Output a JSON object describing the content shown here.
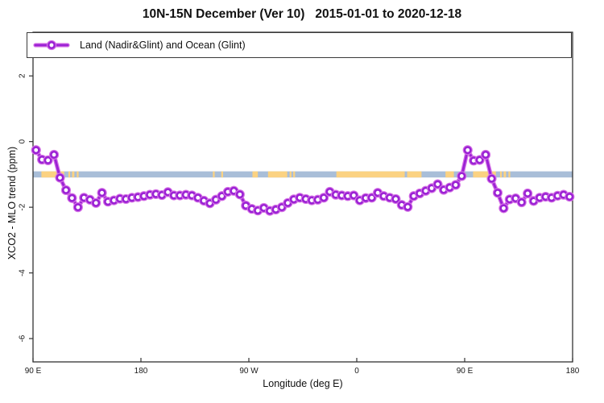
{
  "chart_data": {
    "type": "line",
    "title": "10N-15N December (Ver 10)   2015-01-01 to 2020-12-18",
    "xlabel": "Longitude (deg E)",
    "ylabel": "XCO2 - MLO trend (ppm)",
    "xlim": [
      90,
      540
    ],
    "ylim": [
      -6.71,
      3.33
    ],
    "grid": false,
    "x_ticks": {
      "values": [
        90,
        180,
        270,
        360,
        450,
        540
      ],
      "labels": [
        "90 E",
        "180",
        "90 W",
        "0",
        "90 E",
        "180"
      ]
    },
    "y_ticks": {
      "values": [
        2,
        0,
        -2,
        -4,
        -6
      ],
      "labels": [
        "2",
        "0",
        "-2",
        "-4",
        "-6"
      ]
    },
    "legend": {
      "position": "top",
      "entries": [
        {
          "label": "Land (Nadir&Glint) and Ocean (Glint)",
          "marker": "open-circle",
          "color": "#9b22d4"
        }
      ]
    },
    "colors": {
      "line": "#9b22d4",
      "line_halo": "#d673e6",
      "marker_fill": "#ffffff",
      "axis": "#333333",
      "text": "#1a1a1a"
    },
    "land_ocean_band": {
      "description": "map strip of land vs ocean along latitude band",
      "y_center": -1,
      "ocean_color": "#a9bed8",
      "land_color": "#fbd282",
      "land_segments_deg_e": [
        [
          97,
          116
        ],
        [
          119.5,
          121
        ],
        [
          122.5,
          124.5
        ],
        [
          126.5,
          128
        ],
        [
          240,
          241.5
        ],
        [
          247,
          248.5
        ],
        [
          273,
          277.5
        ],
        [
          286,
          302
        ],
        [
          304,
          305.5
        ],
        [
          307,
          308.5
        ],
        [
          343,
          400
        ],
        [
          402,
          414
        ],
        [
          434,
          441
        ],
        [
          457,
          476
        ],
        [
          479.5,
          481
        ],
        [
          482.5,
          484.5
        ],
        [
          486.5,
          488
        ]
      ]
    },
    "series": [
      {
        "name": "Land (Nadir&Glint) and Ocean (Glint)",
        "x": [
          92.5,
          97.5,
          102.5,
          107.5,
          112.5,
          117.5,
          122.5,
          127.5,
          132.5,
          137.5,
          142.5,
          147.5,
          152.5,
          157.5,
          162.5,
          167.5,
          172.5,
          177.5,
          182.5,
          187.5,
          192.5,
          197.5,
          202.5,
          207.5,
          212.5,
          217.5,
          222.5,
          227.5,
          232.5,
          237.5,
          242.5,
          247.5,
          252.5,
          257.5,
          262.5,
          267.5,
          272.5,
          277.5,
          282.5,
          287.5,
          292.5,
          297.5,
          302.5,
          307.5,
          312.5,
          317.5,
          322.5,
          327.5,
          332.5,
          337.5,
          342.5,
          347.5,
          352.5,
          357.5,
          362.5,
          367.5,
          372.5,
          377.5,
          382.5,
          387.5,
          392.5,
          397.5,
          402.5,
          407.5,
          412.5,
          417.5,
          422.5,
          427.5,
          432.5,
          437.5,
          442.5,
          447.5,
          452.5,
          457.5,
          462.5,
          467.5,
          472.5,
          477.5,
          482.5,
          487.5,
          492.5,
          497.5,
          502.5,
          507.5,
          512.5,
          517.5,
          522.5,
          527.5,
          532.5,
          537.5
        ],
        "y": [
          -0.26,
          -0.55,
          -0.57,
          -0.4,
          -1.1,
          -1.48,
          -1.72,
          -2.0,
          -1.71,
          -1.77,
          -1.87,
          -1.56,
          -1.83,
          -1.79,
          -1.74,
          -1.75,
          -1.71,
          -1.69,
          -1.66,
          -1.62,
          -1.6,
          -1.63,
          -1.54,
          -1.64,
          -1.64,
          -1.62,
          -1.64,
          -1.71,
          -1.8,
          -1.88,
          -1.77,
          -1.66,
          -1.53,
          -1.5,
          -1.61,
          -1.95,
          -2.05,
          -2.1,
          -2.02,
          -2.11,
          -2.07,
          -2.0,
          -1.87,
          -1.76,
          -1.71,
          -1.75,
          -1.79,
          -1.77,
          -1.71,
          -1.53,
          -1.62,
          -1.64,
          -1.66,
          -1.64,
          -1.79,
          -1.72,
          -1.71,
          -1.56,
          -1.66,
          -1.71,
          -1.75,
          -1.93,
          -1.99,
          -1.66,
          -1.58,
          -1.5,
          -1.42,
          -1.3,
          -1.47,
          -1.4,
          -1.32,
          -1.05,
          -0.26,
          -0.58,
          -0.56,
          -0.4,
          -1.13,
          -1.56,
          -2.03,
          -1.76,
          -1.73,
          -1.85,
          -1.58,
          -1.81,
          -1.71,
          -1.68,
          -1.71,
          -1.65,
          -1.62,
          -1.68
        ]
      }
    ]
  }
}
